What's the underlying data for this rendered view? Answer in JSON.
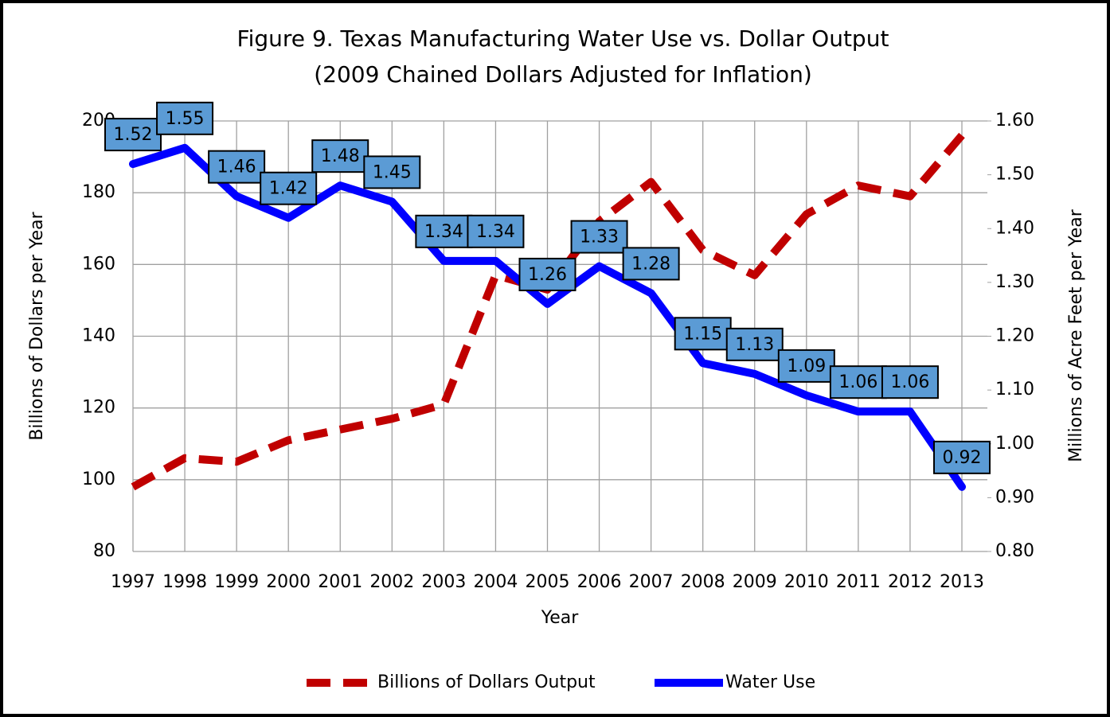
{
  "chart_data": {
    "type": "line",
    "title": "Figure 9. Texas Manufacturing Water Use vs. Dollar Output",
    "subtitle": "(2009 Chained Dollars Adjusted for Inflation)",
    "x_label": "Year",
    "y_label": "Billions of Dollars per Year",
    "y2_label": "Millions of Acre Feet per Year",
    "categories": [
      "1997",
      "1998",
      "1999",
      "2000",
      "2001",
      "2002",
      "2003",
      "2004",
      "2005",
      "2006",
      "2007",
      "2008",
      "2009",
      "2010",
      "2011",
      "2012",
      "2013"
    ],
    "ylim": [
      80,
      200
    ],
    "yticks": [
      80,
      100,
      120,
      140,
      160,
      180,
      200
    ],
    "y2lim": [
      0.8,
      1.6
    ],
    "y2ticks": [
      {
        "value": 0.8,
        "label": "0.80"
      },
      {
        "value": 0.9,
        "label": "0.90"
      },
      {
        "value": 1.0,
        "label": "1.00"
      },
      {
        "value": 1.1,
        "label": "1.10"
      },
      {
        "value": 1.2,
        "label": "1.20"
      },
      {
        "value": 1.3,
        "label": "1.30"
      },
      {
        "value": 1.4,
        "label": "1.40"
      },
      {
        "value": 1.5,
        "label": "1.50"
      },
      {
        "value": 1.6,
        "label": "1.60"
      }
    ],
    "grid": true,
    "legend": "bottom",
    "series": [
      {
        "name": "Billions of Dollars Output",
        "color": "#c00000",
        "style": "dashed",
        "axis": "y",
        "values": [
          98,
          106,
          105,
          111,
          114,
          117,
          121,
          157,
          153,
          172,
          183,
          164,
          157,
          174,
          182,
          179,
          196
        ]
      },
      {
        "name": "Water Use",
        "color": "#0000ff",
        "style": "solid",
        "axis": "y2",
        "data_labels": true,
        "values": [
          1.52,
          1.55,
          1.46,
          1.42,
          1.48,
          1.45,
          1.34,
          1.34,
          1.26,
          1.33,
          1.28,
          1.15,
          1.13,
          1.09,
          1.06,
          1.06,
          0.92
        ]
      }
    ]
  }
}
